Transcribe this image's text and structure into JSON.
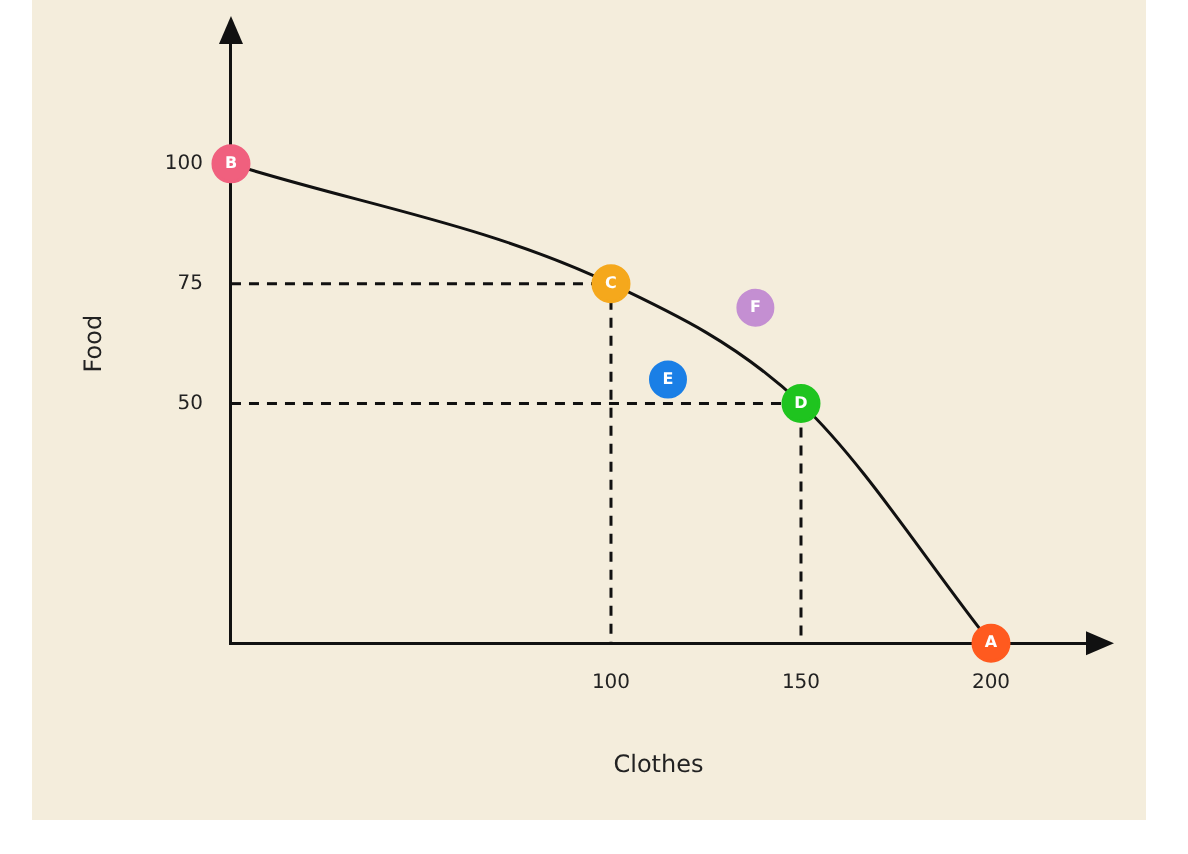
{
  "chart_data": {
    "type": "scatter",
    "xlabel": "Clothes",
    "ylabel": "Food",
    "xlim": [
      0,
      225
    ],
    "ylim": [
      0,
      125
    ],
    "xticks": [
      100,
      150,
      200
    ],
    "yticks": [
      50,
      75,
      100
    ],
    "grid": false,
    "legend": false,
    "series": [
      {
        "type": "line",
        "color": "#111111",
        "line_style": "solid",
        "marker": "circle",
        "colors": [
          "#f0607e",
          "#f5a81c",
          "#1fc41f",
          "#ff5a1f"
        ],
        "value_labels": [
          "B",
          "C",
          "D",
          "A"
        ],
        "x": [
          0,
          100,
          150,
          200
        ],
        "values": [
          100,
          75,
          50,
          0
        ]
      },
      {
        "type": "line",
        "color": "#111111",
        "line_style": "dashed",
        "marker": "none",
        "x": [
          0,
          100,
          100
        ],
        "values": [
          75,
          75,
          0
        ]
      },
      {
        "type": "line",
        "color": "#111111",
        "line_style": "dashed",
        "marker": "none",
        "x": [
          0,
          150,
          150
        ],
        "values": [
          50,
          50,
          0
        ]
      },
      {
        "name": "E",
        "color": "#1a7fe6",
        "marker": "circle",
        "x": [
          115
        ],
        "values": [
          55
        ]
      },
      {
        "name": "F",
        "color": "#c48fd2",
        "marker": "circle",
        "x": [
          138
        ],
        "values": [
          70
        ]
      }
    ]
  }
}
